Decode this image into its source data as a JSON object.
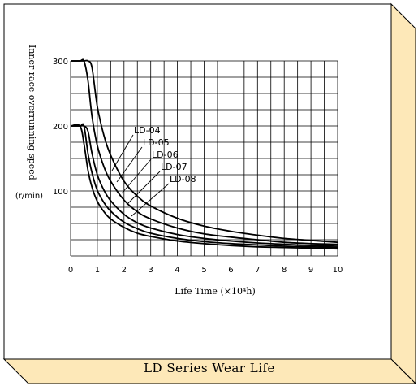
{
  "chart_data": {
    "type": "line",
    "title": "LD Series Wear Life",
    "xlabel": "Life Time (×10⁴h)",
    "ylabel": "Inner race overrunning speed",
    "yunit": "(r/min)",
    "xlim": [
      0,
      10
    ],
    "ylim": [
      0,
      300
    ],
    "x_ticks": [
      "0",
      "1",
      "2",
      "3",
      "4",
      "5",
      "6",
      "7",
      "8",
      "9",
      "10"
    ],
    "y_ticks": [
      "100",
      "200",
      "300"
    ],
    "grid": true,
    "x": [
      0.35,
      0.5,
      0.65,
      0.8,
      1.0,
      1.25,
      1.5,
      2.0,
      2.5,
      3.0,
      4.0,
      5.0,
      6.0,
      7.0,
      8.0,
      9.0,
      10.0
    ],
    "series": [
      {
        "name": "LD-04",
        "values": [
          300,
          300,
          300,
          290,
          230,
          185,
          155,
          115,
          92,
          77,
          58,
          46,
          38,
          32,
          27,
          24,
          21
        ]
      },
      {
        "name": "LD-05",
        "values": [
          300,
          300,
          270,
          215,
          170,
          137,
          115,
          86,
          68,
          57,
          43,
          34,
          29,
          25,
          21,
          19,
          18
        ]
      },
      {
        "name": "LD-06",
        "values": [
          200,
          200,
          192,
          158,
          125,
          101,
          85,
          64,
          51,
          43,
          33,
          27,
          23,
          20,
          18,
          16,
          15
        ]
      },
      {
        "name": "LD-07",
        "values": [
          200,
          200,
          158,
          128,
          101,
          82,
          69,
          52,
          42,
          35,
          27,
          22,
          19,
          17,
          15,
          14,
          13
        ]
      },
      {
        "name": "LD-08",
        "values": [
          200,
          173,
          132,
          106,
          84,
          68,
          57,
          44,
          35,
          30,
          23,
          19,
          16,
          14,
          13,
          12,
          11
        ]
      }
    ]
  }
}
